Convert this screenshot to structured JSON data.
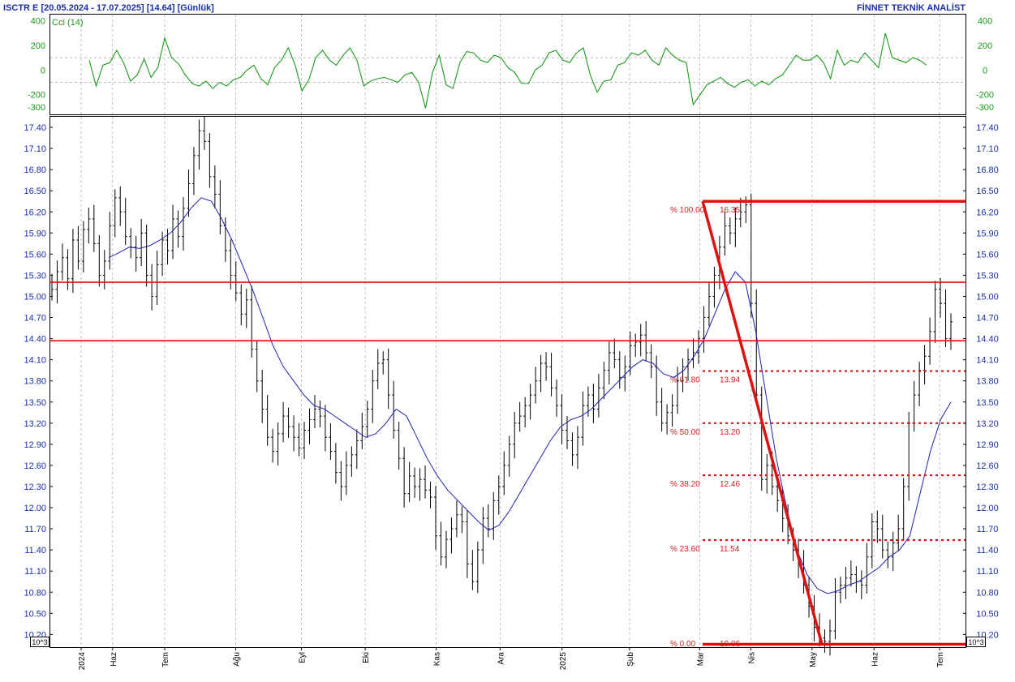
{
  "header": {
    "title": "ISCTR E  [20.05.2024 - 17.07.2025]  [14.64]  [Günlük]",
    "brand": "FİNNET TEKNİK ANALİST"
  },
  "colors": {
    "accent_blue": "#1a2ea8",
    "price_bars": "#000000",
    "moving_average": "#2020b0",
    "cci_line": "#1a9a1a",
    "levels": "#e01010"
  },
  "cci_panel": {
    "label": "Cci (14)",
    "ticks": [
      "400",
      "200",
      "0",
      "-200",
      "-300"
    ],
    "tick_values": [
      400,
      200,
      0,
      -200,
      -300
    ]
  },
  "price_panel": {
    "ticks": [
      "17.40",
      "17.10",
      "16.80",
      "16.50",
      "16.20",
      "15.90",
      "15.60",
      "15.30",
      "15.00",
      "14.70",
      "14.40",
      "14.10",
      "13.80",
      "13.50",
      "13.20",
      "12.90",
      "12.60",
      "12.30",
      "12.00",
      "11.70",
      "11.40",
      "11.10",
      "10.80",
      "10.50",
      "10.20"
    ],
    "scale_badge": "10^3"
  },
  "x_axis": {
    "labels": [
      "2024",
      "Haz",
      "Tem",
      "Ağu",
      "Eyl",
      "Eki",
      "Kas",
      "Ara",
      "2025",
      "Şub",
      "Mar",
      "Nis",
      "May",
      "Haz",
      "Tem"
    ]
  },
  "fibonacci": {
    "high": 16.35,
    "low": 10.06,
    "levels": [
      {
        "pct_label": "% 100.00",
        "value_label": "16.35",
        "value": 16.35
      },
      {
        "pct_label": "% 61.80",
        "value_label": "13.94",
        "value": 13.94
      },
      {
        "pct_label": "% 50.00",
        "value_label": "13.20",
        "value": 13.2
      },
      {
        "pct_label": "% 38.20",
        "value_label": "12.46",
        "value": 12.46
      },
      {
        "pct_label": "% 23.60",
        "value_label": "11.54",
        "value": 11.54
      },
      {
        "pct_label": "% 0.00",
        "value_label": "10.06",
        "value": 10.06
      }
    ]
  },
  "chart_data": [
    {
      "type": "line",
      "title": "",
      "series": [
        {
          "name": "Cci (14)",
          "values": [
            80,
            -130,
            40,
            60,
            160,
            60,
            -90,
            -40,
            90,
            -60,
            20,
            260,
            100,
            50,
            -40,
            -110,
            -130,
            -90,
            -150,
            -100,
            -130,
            -80,
            -60,
            0,
            40,
            -70,
            -120,
            20,
            80,
            180,
            40,
            -170,
            -80,
            100,
            160,
            80,
            40,
            120,
            180,
            80,
            -130,
            -90,
            -70,
            -60,
            -80,
            -100,
            -40,
            -20,
            -100,
            -310,
            -20,
            120,
            -120,
            -150,
            60,
            150,
            140,
            80,
            60,
            120,
            100,
            20,
            -20,
            -110,
            -110,
            0,
            40,
            140,
            160,
            80,
            60,
            140,
            180,
            -40,
            -180,
            -90,
            -80,
            40,
            60,
            140,
            120,
            160,
            80,
            40,
            180,
            120,
            80,
            60,
            -280,
            -200,
            -120,
            -90,
            -60,
            -110,
            -140,
            -100,
            -80,
            -130,
            -90,
            -120,
            -70,
            -40,
            40,
            120,
            80,
            80,
            120,
            60,
            -70,
            160,
            40,
            80,
            60,
            140,
            80,
            20,
            300,
            100,
            80,
            60,
            100,
            80,
            40
          ],
          "x_range": [
            "20.05.2024",
            "17.07.2025"
          ]
        }
      ],
      "ylim": [
        -360,
        450
      ],
      "grid": true
    },
    {
      "type": "ohlc",
      "title": "",
      "series": [
        {
          "name": "ISCTR E",
          "closes": [
            15.1,
            15.35,
            15.55,
            15.25,
            15.8,
            15.5,
            15.95,
            16.1,
            15.75,
            15.3,
            15.5,
            16.0,
            16.4,
            16.2,
            15.85,
            15.7,
            15.55,
            15.9,
            15.3,
            15.0,
            15.45,
            15.8,
            15.65,
            16.1,
            15.85,
            16.25,
            16.6,
            17.0,
            17.35,
            17.2,
            16.7,
            16.45,
            16.0,
            15.65,
            15.3,
            15.05,
            14.75,
            14.95,
            14.25,
            13.8,
            13.4,
            13.0,
            12.8,
            13.05,
            13.3,
            13.15,
            13.0,
            12.85,
            13.1,
            13.25,
            13.4,
            13.3,
            13.0,
            12.8,
            12.5,
            12.3,
            12.6,
            12.75,
            12.95,
            13.15,
            13.4,
            13.8,
            14.05,
            14.1,
            13.6,
            13.1,
            12.7,
            12.2,
            12.45,
            12.3,
            12.4,
            12.25,
            12.15,
            11.6,
            11.3,
            11.55,
            11.7,
            11.9,
            11.8,
            11.2,
            10.95,
            11.4,
            11.85,
            11.7,
            12.1,
            12.3,
            12.6,
            12.9,
            13.2,
            13.3,
            13.45,
            13.6,
            13.8,
            14.05,
            14.0,
            13.7,
            13.45,
            13.1,
            12.95,
            12.75,
            13.0,
            13.45,
            13.6,
            13.4,
            13.7,
            13.95,
            14.2,
            14.1,
            13.85,
            14.0,
            14.3,
            14.35,
            14.45,
            14.2,
            14.0,
            13.5,
            13.2,
            13.35,
            13.45,
            13.8,
            14.0,
            14.1,
            14.2,
            14.4,
            14.7,
            15.0,
            15.3,
            15.7,
            16.0,
            15.9,
            16.1,
            16.2,
            16.3,
            14.9,
            13.6,
            12.4,
            12.6,
            12.3,
            12.1,
            11.85,
            11.6,
            11.4,
            11.2,
            10.9,
            10.6,
            10.3,
            10.15,
            10.1,
            10.25,
            10.8,
            10.9,
            11.0,
            11.05,
            10.95,
            10.9,
            11.3,
            11.8,
            11.7,
            11.4,
            11.3,
            11.5,
            11.7,
            12.3,
            13.2,
            13.6,
            13.95,
            14.15,
            14.5,
            15.1,
            14.9,
            14.4,
            14.64
          ],
          "x_range": [
            "20.05.2024",
            "17.07.2025"
          ]
        },
        {
          "name": "Moving average",
          "values": [
            15.55,
            15.62,
            15.7,
            15.68,
            15.72,
            15.8,
            15.9,
            16.05,
            16.25,
            16.4,
            16.35,
            16.1,
            15.8,
            15.45,
            15.1,
            14.7,
            14.3,
            14.0,
            13.8,
            13.6,
            13.45,
            13.4,
            13.3,
            13.2,
            13.1,
            13.0,
            13.05,
            13.2,
            13.4,
            13.3,
            13.0,
            12.7,
            12.45,
            12.25,
            12.1,
            11.95,
            11.8,
            11.68,
            11.75,
            11.95,
            12.2,
            12.45,
            12.7,
            12.95,
            13.15,
            13.25,
            13.3,
            13.4,
            13.55,
            13.7,
            13.85,
            14.0,
            14.1,
            14.05,
            13.9,
            13.85,
            13.95,
            14.15,
            14.4,
            14.75,
            15.1,
            15.35,
            15.2,
            14.5,
            13.6,
            12.7,
            12.0,
            11.4,
            11.05,
            10.85,
            10.78,
            10.82,
            10.9,
            10.95,
            11.05,
            11.15,
            11.3,
            11.4,
            11.6,
            12.2,
            12.8,
            13.25,
            13.5
          ]
        }
      ],
      "y_range": [
        10.02,
        17.55
      ],
      "horizontal_levels": [
        15.2,
        14.37
      ],
      "trendline": {
        "from": 16.35,
        "to": 10.06
      }
    }
  ]
}
